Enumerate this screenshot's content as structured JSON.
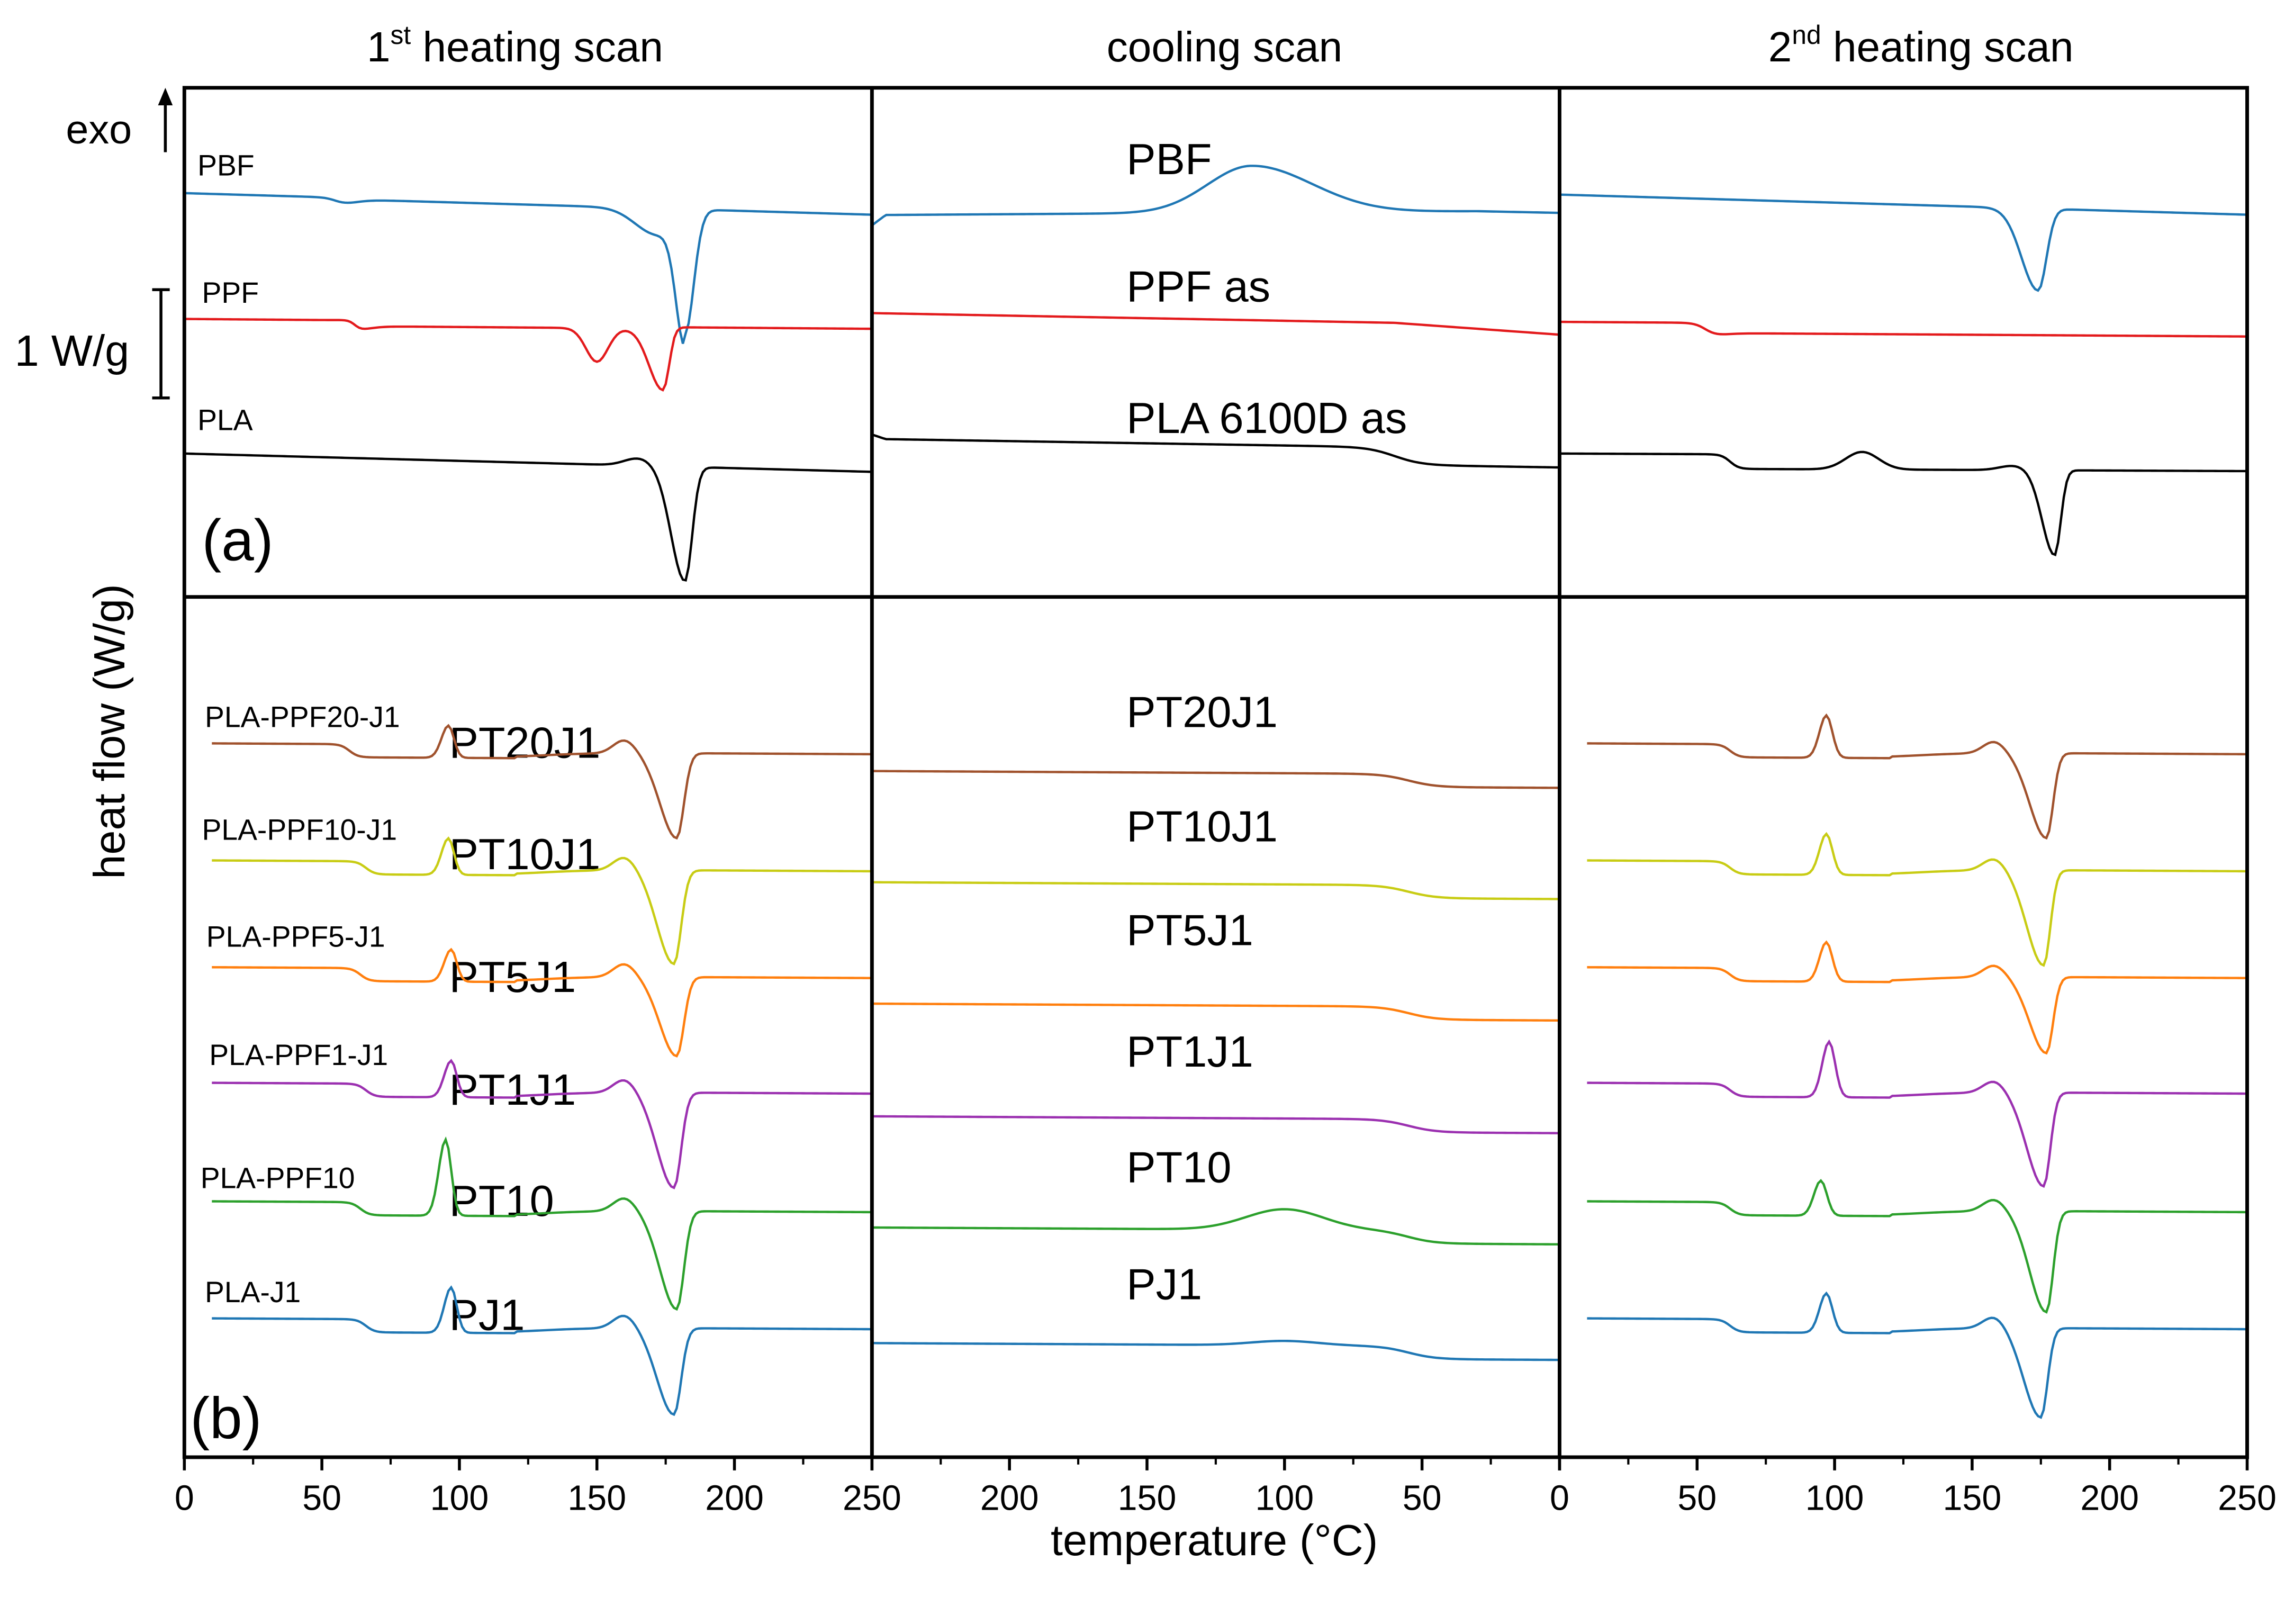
{
  "chart_data": {
    "type": "line",
    "description_free": true,
    "y_axis_label": "heat flow (W/g)",
    "x_axis_label": "temperature (°C)",
    "exo_label": "exo",
    "scale_bar_label": "1 W/g",
    "columns": [
      {
        "title_main": "1",
        "title_sup": "st",
        "title_rest": " heating scan",
        "x_ticks": [
          "0",
          "50",
          "100",
          "150",
          "200",
          "250"
        ],
        "x_range": [
          0,
          250
        ],
        "reversed": false
      },
      {
        "title_main": "cooling scan",
        "title_sup": "",
        "title_rest": "",
        "x_ticks": [
          "250",
          "200",
          "150",
          "100",
          "50",
          "0"
        ],
        "x_range": [
          250,
          0
        ],
        "reversed": true
      },
      {
        "title_main": "2",
        "title_sup": "nd",
        "title_rest": " heating scan",
        "x_ticks": [
          "0",
          "50",
          "100",
          "150",
          "200",
          "250"
        ],
        "x_range": [
          0,
          250
        ],
        "reversed": false
      }
    ],
    "panel_labels": [
      "(a)",
      "(b)"
    ],
    "series_a": [
      {
        "name": "PBF",
        "cooling_label": "PBF",
        "color": "#1f77b4"
      },
      {
        "name": "PPF",
        "cooling_label": "PPF as",
        "color": "#e31a1c"
      },
      {
        "name": "PLA",
        "cooling_label": "PLA 6100D as",
        "color": "#000000"
      }
    ],
    "series_b": [
      {
        "name": "PLA-PPF20-J1",
        "short": "PT20J1",
        "color": "#a0522d"
      },
      {
        "name": "PLA-PPF10-J1",
        "short": "PT10J1",
        "color": "#c8cc14"
      },
      {
        "name": "PLA-PPF5-J1",
        "short": "PT5J1",
        "color": "#ff7f0e"
      },
      {
        "name": "PLA-PPF1-J1",
        "short": "PT1J1",
        "color": "#9b30b0"
      },
      {
        "name": "PLA-PPF10",
        "short": "PT10",
        "color": "#2ca02c"
      },
      {
        "name": "PLA-J1",
        "short": "PJ1",
        "color": "#1f77b4"
      }
    ],
    "features": {
      "PBF": {
        "heat1": {
          "tg": 55,
          "tm": 182
        },
        "cool": {
          "tc": 112
        },
        "heat2": {
          "tm": 174
        }
      },
      "PPF": {
        "heat1": {
          "tg": 62,
          "tm1": 150,
          "tm2": 174
        },
        "cool": {},
        "heat2": {
          "tg": 53
        }
      },
      "PLA": {
        "heat1": {
          "tm": 182
        },
        "cool": {
          "tg": 60
        },
        "heat2": {
          "tg": 62,
          "tcc": 110,
          "tm": 180
        }
      },
      "PLA-PPF20-J1": {
        "heat1": {
          "tg": 60,
          "tcc": 96,
          "tm": 179
        },
        "heat2": {
          "tcc": 97,
          "tm": 177
        }
      },
      "PLA-PPF10-J1": {
        "heat1": {
          "tg": 66,
          "tcc": 96,
          "tm": 178
        },
        "heat2": {
          "tcc": 97,
          "tm": 176
        }
      },
      "PLA-PPF5-J1": {
        "heat1": {
          "tcc": 97,
          "tm": 179
        },
        "heat2": {
          "tcc": 97,
          "tm": 177
        }
      },
      "PLA-PPF1-J1": {
        "heat1": {
          "tg": 66,
          "tcc": 97,
          "tm": 178
        },
        "heat2": {
          "tcc": 98,
          "tm": 176
        }
      },
      "PLA-PPF10": {
        "heat1": {
          "tcc": 95,
          "tm": 179
        },
        "cool": {
          "tc": 100
        },
        "heat2": {
          "tcc": 95,
          "tm": 177
        }
      },
      "PLA-J1": {
        "heat1": {
          "tg": 66,
          "tcc": 97,
          "tm": 178
        },
        "heat2": {
          "tcc": 97,
          "tm": 175
        }
      }
    }
  }
}
